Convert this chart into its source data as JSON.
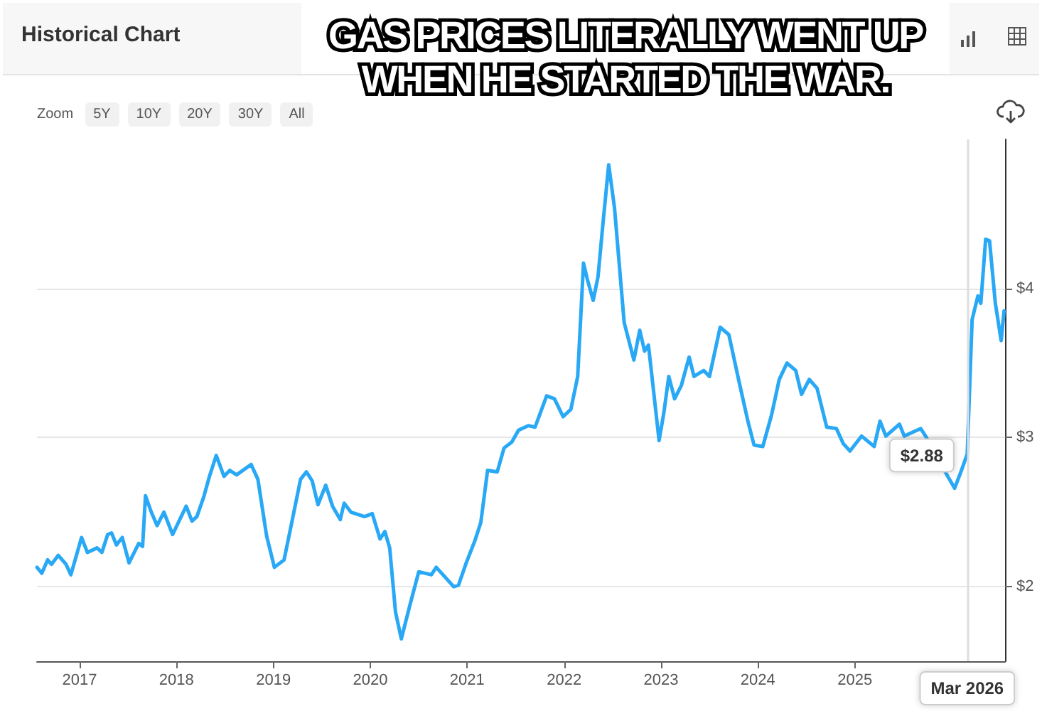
{
  "chart_data": {
    "type": "line",
    "title": "Historical Chart",
    "subtitle": "GAS PRICES LITERALLY WENT UP WHEN HE STARTED THE WAR.",
    "annotations": [
      "Zoom",
      "5Y",
      "10Y",
      "20Y",
      "30Y",
      "All",
      {
        "text": "$2.88",
        "x": 2026.16,
        "y": 2.88
      }
    ],
    "x": [
      2016.56,
      2016.61,
      2016.67,
      2016.71,
      2016.78,
      2016.86,
      2016.91,
      2017.02,
      2017.08,
      2017.18,
      2017.23,
      2017.29,
      2017.33,
      2017.38,
      2017.44,
      2017.51,
      2017.61,
      2017.65,
      2017.68,
      2017.74,
      2017.8,
      2017.87,
      2017.96,
      2018.1,
      2018.16,
      2018.21,
      2018.28,
      2018.34,
      2018.41,
      2018.49,
      2018.55,
      2018.62,
      2018.77,
      2018.84,
      2018.93,
      2019.01,
      2019.11,
      2019.18,
      2019.28,
      2019.34,
      2019.4,
      2019.46,
      2019.54,
      2019.61,
      2019.69,
      2019.73,
      2019.8,
      2019.94,
      2020.02,
      2020.1,
      2020.15,
      2020.2,
      2020.26,
      2020.32,
      2020.41,
      2020.5,
      2020.63,
      2020.68,
      2020.75,
      2020.86,
      2020.91,
      2020.99,
      2021.08,
      2021.14,
      2021.21,
      2021.31,
      2021.38,
      2021.46,
      2021.53,
      2021.63,
      2021.7,
      2021.82,
      2021.9,
      2021.99,
      2022.07,
      2022.14,
      2022.2,
      2022.24,
      2022.3,
      2022.35,
      2022.4,
      2022.46,
      2022.52,
      2022.62,
      2022.72,
      2022.78,
      2022.83,
      2022.87,
      2022.92,
      2022.98,
      2023.03,
      2023.08,
      2023.14,
      2023.21,
      2023.29,
      2023.34,
      2023.44,
      2023.5,
      2023.61,
      2023.7,
      2023.8,
      2023.9,
      2023.96,
      2024.05,
      2024.14,
      2024.22,
      2024.3,
      2024.39,
      2024.45,
      2024.53,
      2024.61,
      2024.71,
      2024.81,
      2024.88,
      2024.95,
      2025.07,
      2025.2,
      2025.26,
      2025.32,
      2025.46,
      2025.51,
      2025.68,
      2025.73,
      2025.95,
      2026.03,
      2026.1,
      2026.16,
      2026.21,
      2026.27,
      2026.3,
      2026.35,
      2026.39,
      2026.45,
      2026.51,
      2026.54
    ],
    "series": [
      {
        "color": "#29a9f5",
        "values": [
          2.13,
          2.09,
          2.18,
          2.15,
          2.21,
          2.15,
          2.08,
          2.33,
          2.23,
          2.26,
          2.23,
          2.35,
          2.36,
          2.28,
          2.33,
          2.16,
          2.29,
          2.27,
          2.61,
          2.5,
          2.41,
          2.5,
          2.35,
          2.54,
          2.44,
          2.47,
          2.6,
          2.74,
          2.88,
          2.74,
          2.78,
          2.75,
          2.82,
          2.72,
          2.34,
          2.13,
          2.18,
          2.4,
          2.72,
          2.77,
          2.71,
          2.55,
          2.68,
          2.54,
          2.45,
          2.56,
          2.5,
          2.47,
          2.49,
          2.32,
          2.37,
          2.26,
          1.83,
          1.65,
          1.88,
          2.1,
          2.08,
          2.13,
          2.08,
          2.0,
          2.01,
          2.16,
          2.31,
          2.43,
          2.78,
          2.77,
          2.93,
          2.97,
          3.05,
          3.08,
          3.07,
          3.28,
          3.26,
          3.14,
          3.19,
          3.41,
          4.17,
          4.06,
          3.92,
          4.08,
          4.43,
          4.83,
          4.54,
          3.77,
          3.52,
          3.72,
          3.58,
          3.62,
          3.33,
          2.98,
          3.17,
          3.41,
          3.26,
          3.35,
          3.54,
          3.41,
          3.45,
          3.41,
          3.74,
          3.69,
          3.39,
          3.1,
          2.95,
          2.94,
          3.15,
          3.39,
          3.5,
          3.45,
          3.29,
          3.39,
          3.33,
          3.07,
          3.06,
          2.96,
          2.91,
          3.01,
          2.94,
          3.11,
          3.01,
          3.09,
          3.01,
          3.06,
          3.01,
          2.75,
          2.66,
          2.78,
          2.89,
          3.79,
          3.95,
          3.9,
          4.33,
          4.32,
          3.9,
          3.65,
          3.85
        ]
      }
    ],
    "xlim": [
      2016.56,
      2026.55
    ],
    "xticks": [
      2017,
      2018,
      2019,
      2020,
      2021,
      2022,
      2023,
      2024,
      2025
    ],
    "ylim": [
      1.5,
      5.0
    ],
    "yticks": [
      {
        "value": 2,
        "label": "$2"
      },
      {
        "value": 3,
        "label": "$3"
      },
      {
        "value": 4,
        "label": "$4"
      }
    ],
    "ref_lines": [
      {
        "axis": "x",
        "value": 2026.16,
        "label": "Mar 2026",
        "color": "#dddddd"
      }
    ],
    "grid": "y",
    "marker": "none",
    "line_style": "solid"
  }
}
